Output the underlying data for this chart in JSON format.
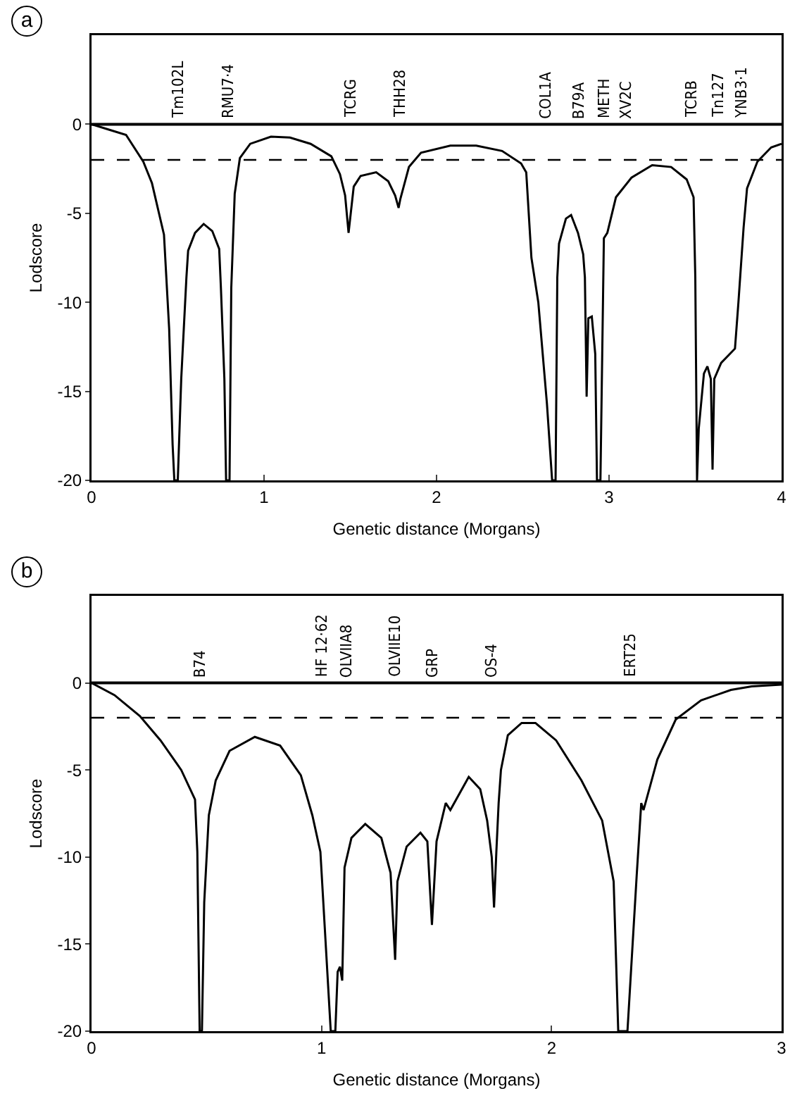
{
  "chart_data": [
    {
      "type": "line",
      "title": "a",
      "xlabel": "Genetic distance (Morgans)",
      "ylabel": "Lodscore",
      "color": "#000000",
      "marker": "none",
      "line_style": "solid",
      "x": [
        0,
        0.1,
        0.2,
        0.3,
        0.35,
        0.42,
        0.45,
        0.47,
        0.48,
        0.5,
        0.52,
        0.55,
        0.56,
        0.6,
        0.65,
        0.7,
        0.74,
        0.75,
        0.77,
        0.78,
        0.8,
        0.81,
        0.83,
        0.86,
        0.92,
        1.04,
        1.15,
        1.27,
        1.39,
        1.44,
        1.47,
        1.49,
        1.52,
        1.56,
        1.65,
        1.72,
        1.76,
        1.78,
        1.79,
        1.84,
        1.91,
        2.08,
        2.23,
        2.38,
        2.49,
        2.52,
        2.55,
        2.59,
        2.64,
        2.67,
        2.69,
        2.7,
        2.71,
        2.75,
        2.78,
        2.82,
        2.85,
        2.86,
        2.87,
        2.88,
        2.9,
        2.92,
        2.93,
        2.95,
        2.97,
        2.99,
        3.04,
        3.13,
        3.25,
        3.36,
        3.45,
        3.49,
        3.5,
        3.51,
        3.52,
        3.55,
        3.57,
        3.59,
        3.6,
        3.61,
        3.65,
        3.73,
        3.75,
        3.78,
        3.8,
        3.86,
        3.94,
        4
      ],
      "values": [
        0,
        -0.3,
        -0.6,
        -2.1,
        -3.3,
        -6.2,
        -11.5,
        -18,
        -20,
        -20,
        -14.3,
        -8.6,
        -7.1,
        -6.1,
        -5.6,
        -6,
        -7,
        -9.2,
        -14.3,
        -20,
        -20,
        -9.2,
        -3.9,
        -1.9,
        -1.1,
        -0.7,
        -0.75,
        -1.1,
        -1.8,
        -2.8,
        -4,
        -6.1,
        -3.5,
        -2.9,
        -2.7,
        -3.2,
        -4,
        -4.7,
        -4.2,
        -2.4,
        -1.6,
        -1.2,
        -1.2,
        -1.5,
        -2.2,
        -2.7,
        -7.5,
        -10,
        -15.7,
        -20,
        -20,
        -8.6,
        -6.7,
        -5.3,
        -5.1,
        -6.1,
        -7.3,
        -8.6,
        -15.3,
        -10.9,
        -10.8,
        -12.9,
        -20,
        -20,
        -6.4,
        -6.1,
        -4.1,
        -3,
        -2.3,
        -2.4,
        -3.1,
        -4.1,
        -8.6,
        -20,
        -17.1,
        -14,
        -13.6,
        -14.3,
        -19.4,
        -14.3,
        -13.4,
        -12.6,
        -10,
        -5.8,
        -3.6,
        -2.1,
        -1.3,
        -1.1
      ],
      "xlim": [
        0,
        4
      ],
      "xticks": [
        0,
        1,
        2,
        3,
        4
      ],
      "ylim": [
        -20,
        5
      ],
      "yticks": [
        0,
        -5,
        -10,
        -15,
        -20
      ],
      "ref_lines": [
        {
          "axis": "y",
          "value": 0,
          "line_style": "solid"
        },
        {
          "axis": "y",
          "value": -2,
          "line_style": "dashed"
        }
      ],
      "annotations": [
        {
          "text": "Tm102L",
          "x": 0.5,
          "y": 0
        },
        {
          "text": "RMU7·4",
          "x": 0.79,
          "y": 0
        },
        {
          "text": "TCRG",
          "x": 1.5,
          "y": 0
        },
        {
          "text": "THH28",
          "x": 1.79,
          "y": 0
        },
        {
          "text": "COL1A",
          "x": 2.63,
          "y": 0
        },
        {
          "text": "B79A",
          "x": 2.82,
          "y": 0
        },
        {
          "text": "METH",
          "x": 2.97,
          "y": 0
        },
        {
          "text": "XV2C",
          "x": 3.1,
          "y": 0
        },
        {
          "text": "TCRB",
          "x": 3.48,
          "y": 0
        },
        {
          "text": "Tn127",
          "x": 3.63,
          "y": 0
        },
        {
          "text": "YNB3·1",
          "x": 3.77,
          "y": 0
        }
      ]
    },
    {
      "type": "line",
      "title": "b",
      "xlabel": "Genetic distance (Morgans)",
      "ylabel": "Lodscore",
      "color": "#000000",
      "marker": "none",
      "line_style": "solid",
      "x": [
        0,
        0.1,
        0.21,
        0.3,
        0.39,
        0.45,
        0.46,
        0.47,
        0.48,
        0.49,
        0.51,
        0.54,
        0.6,
        0.71,
        0.82,
        0.91,
        0.96,
        0.995,
        1.04,
        1.06,
        1.07,
        1.08,
        1.09,
        1.1,
        1.13,
        1.19,
        1.26,
        1.3,
        1.32,
        1.33,
        1.37,
        1.43,
        1.46,
        1.48,
        1.5,
        1.54,
        1.56,
        1.64,
        1.69,
        1.72,
        1.74,
        1.75,
        1.76,
        1.77,
        1.78,
        1.81,
        1.87,
        1.93,
        2.02,
        2.13,
        2.22,
        2.27,
        2.29,
        2.33,
        2.37,
        2.39,
        2.4,
        2.46,
        2.54,
        2.65,
        2.78,
        2.87,
        3
      ],
      "values": [
        0,
        -0.7,
        -1.9,
        -3.3,
        -5,
        -6.7,
        -9.7,
        -20,
        -20,
        -12.6,
        -7.6,
        -5.6,
        -3.9,
        -3.1,
        -3.6,
        -5.3,
        -7.6,
        -9.7,
        -20,
        -20,
        -16.6,
        -16.3,
        -17.1,
        -10.6,
        -8.9,
        -8.1,
        -8.9,
        -10.9,
        -15.9,
        -11.4,
        -9.4,
        -8.6,
        -9.1,
        -13.9,
        -9.1,
        -6.9,
        -7.3,
        -5.4,
        -6.1,
        -7.9,
        -10,
        -12.9,
        -9.7,
        -6.9,
        -5,
        -3,
        -2.3,
        -2.3,
        -3.3,
        -5.6,
        -7.9,
        -11.4,
        -20,
        -20,
        -11.1,
        -6.9,
        -7.3,
        -4.4,
        -2.1,
        -1,
        -0.4,
        -0.2,
        -0.1
      ],
      "xlim": [
        0,
        3
      ],
      "xticks": [
        0,
        1,
        2,
        3
      ],
      "ylim": [
        -20,
        5
      ],
      "yticks": [
        0,
        -5,
        -10,
        -15,
        -20
      ],
      "ref_lines": [
        {
          "axis": "y",
          "value": 0,
          "line_style": "solid"
        },
        {
          "axis": "y",
          "value": -2,
          "line_style": "dashed"
        }
      ],
      "annotations": [
        {
          "text": "B74",
          "x": 0.47,
          "y": 0
        },
        {
          "text": "HF 12·62",
          "x": 1.0,
          "y": 0
        },
        {
          "text": "OLVIIA8",
          "x": 1.11,
          "y": 0
        },
        {
          "text": "OLVIIE10",
          "x": 1.32,
          "y": 0
        },
        {
          "text": "GRP",
          "x": 1.48,
          "y": 0
        },
        {
          "text": "OS-4",
          "x": 1.74,
          "y": 0
        },
        {
          "text": "ERT25",
          "x": 2.34,
          "y": 0
        }
      ]
    }
  ]
}
